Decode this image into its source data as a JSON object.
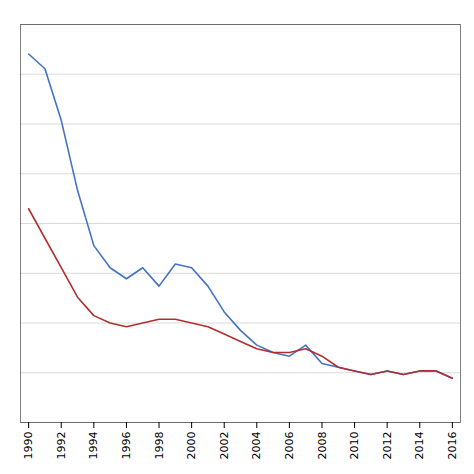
{
  "chart_data": {
    "type": "line",
    "x": [
      1990,
      1991,
      1992,
      1993,
      1994,
      1995,
      1996,
      1997,
      1998,
      1999,
      2000,
      2001,
      2002,
      2003,
      2004,
      2005,
      2006,
      2007,
      2008,
      2009,
      2010,
      2011,
      2012,
      2013,
      2014,
      2015,
      2016
    ],
    "series": [
      {
        "color": "#4472c4",
        "values": [
          100,
          96,
          82,
          63,
          48,
          42,
          39,
          42,
          37,
          43,
          42,
          37,
          30,
          25,
          21,
          19,
          18,
          21,
          16,
          15,
          14,
          13,
          14,
          13,
          14,
          14,
          12
        ]
      },
      {
        "color": "#b03030",
        "values": [
          58,
          50,
          42,
          34,
          29,
          27,
          26,
          27,
          28,
          28,
          27,
          26,
          24,
          22,
          20,
          19,
          19,
          20,
          18,
          15,
          14,
          13,
          14,
          13,
          14,
          14,
          12
        ]
      }
    ],
    "xlim": [
      1989.5,
      2016.5
    ],
    "xticks": [
      1990,
      1992,
      1994,
      1996,
      1998,
      2000,
      2002,
      2004,
      2006,
      2008,
      2010,
      2012,
      2014,
      2016
    ],
    "ylim": [
      0,
      108
    ],
    "yticks": [
      0,
      13.5,
      27,
      40.5,
      54,
      67.5,
      81,
      94.5,
      108
    ],
    "grid": true,
    "tick_labels": "x"
  }
}
